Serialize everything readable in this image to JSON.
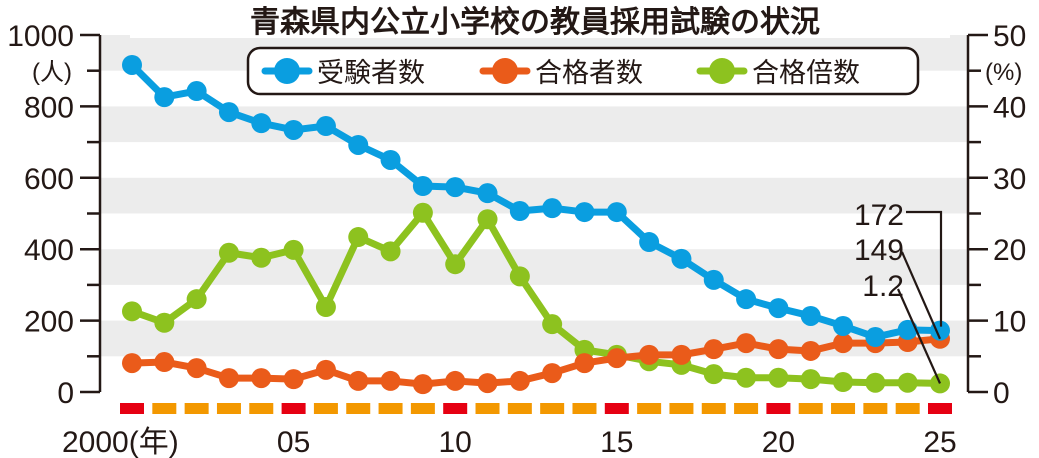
{
  "chart_data": {
    "type": "line",
    "title": "青森県内公立小学校の教員採用試験の状況",
    "x": [
      2000,
      2001,
      2002,
      2003,
      2004,
      2005,
      2006,
      2007,
      2008,
      2009,
      2010,
      2011,
      2012,
      2013,
      2014,
      2015,
      2016,
      2017,
      2018,
      2019,
      2020,
      2021,
      2022,
      2023,
      2024,
      2025
    ],
    "x_tick_labels": [
      {
        "year": 2000,
        "label": "2000(年)"
      },
      {
        "year": 2005,
        "label": "05"
      },
      {
        "year": 2010,
        "label": "10"
      },
      {
        "year": 2015,
        "label": "15"
      },
      {
        "year": 2020,
        "label": "20"
      },
      {
        "year": 2025,
        "label": "25"
      }
    ],
    "left_axis": {
      "label": "(人)",
      "ticks": [
        0,
        200,
        400,
        600,
        800,
        1000
      ],
      "ylim": [
        0,
        1000
      ]
    },
    "right_axis": {
      "label": "(%)",
      "ticks": [
        0,
        10,
        20,
        30,
        40,
        50
      ],
      "ylim": [
        0,
        50
      ]
    },
    "grid": "alternating horizontal bands",
    "legend_position": "top-center",
    "series": [
      {
        "name": "受験者数",
        "axis": "left",
        "color": "#0a9ee0",
        "values": [
          916,
          826,
          843,
          784,
          753,
          734,
          745,
          692,
          650,
          577,
          574,
          557,
          507,
          515,
          504,
          504,
          420,
          373,
          314,
          260,
          235,
          213,
          185,
          154,
          174,
          172
        ]
      },
      {
        "name": "合格者数",
        "axis": "left",
        "color": "#ea5b1a",
        "values": [
          81,
          84,
          67,
          39,
          39,
          36,
          62,
          31,
          31,
          22,
          31,
          25,
          31,
          53,
          81,
          95,
          104,
          104,
          120,
          137,
          120,
          115,
          137,
          137,
          140,
          149
        ]
      },
      {
        "name": "合格倍数",
        "axis": "right",
        "color": "#8dc21f",
        "values": [
          11.3,
          9.7,
          13.0,
          19.5,
          18.8,
          19.9,
          11.9,
          21.7,
          19.7,
          25.1,
          17.9,
          24.2,
          16.2,
          9.5,
          5.9,
          5.2,
          4.3,
          3.8,
          2.5,
          2.0,
          2.0,
          1.8,
          1.4,
          1.3,
          1.3,
          1.2
        ]
      }
    ],
    "annotations": [
      {
        "text": "172",
        "series": "受験者数",
        "year": 2025
      },
      {
        "text": "149",
        "series": "合格者数",
        "year": 2025
      },
      {
        "text": "1.2",
        "series": "合格倍数",
        "year": 2025
      }
    ],
    "year_markers": {
      "highlight_color": "#e60012",
      "normal_color": "#f39800",
      "highlight_years": [
        2000,
        2005,
        2010,
        2015,
        2020,
        2025
      ]
    }
  }
}
